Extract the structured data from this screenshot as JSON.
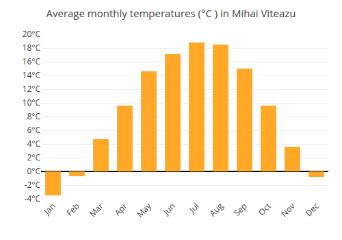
{
  "chart_data": {
    "type": "bar",
    "title": "Average monthly temperatures (°C ) in Mihai Viteazu",
    "categories": [
      "Jan",
      "Feb",
      "Mar",
      "Apr",
      "May",
      "Jun",
      "Jul",
      "Aug",
      "Sep",
      "Oct",
      "Nov",
      "Dec"
    ],
    "values": [
      -3.5,
      -0.7,
      4.7,
      9.6,
      14.6,
      17.1,
      18.8,
      18.5,
      15.0,
      9.6,
      3.6,
      -0.8
    ],
    "color": "#FFA726",
    "ylim": [
      -4,
      20
    ],
    "yticks": [
      {
        "value": -4,
        "label": "-4°C"
      },
      {
        "value": -2,
        "label": "-2°C"
      },
      {
        "value": 0,
        "label": "0°C"
      },
      {
        "value": 2,
        "label": "2°C"
      },
      {
        "value": 4,
        "label": "4°C"
      },
      {
        "value": 6,
        "label": "6°C"
      },
      {
        "value": 8,
        "label": "8°C"
      },
      {
        "value": 10,
        "label": "10°C"
      },
      {
        "value": 12,
        "label": "12°C"
      },
      {
        "value": 14,
        "label": "14°C"
      },
      {
        "value": 16,
        "label": "16°C"
      },
      {
        "value": 18,
        "label": "18°C"
      },
      {
        "value": 20,
        "label": "20°C"
      }
    ],
    "grid": true
  }
}
